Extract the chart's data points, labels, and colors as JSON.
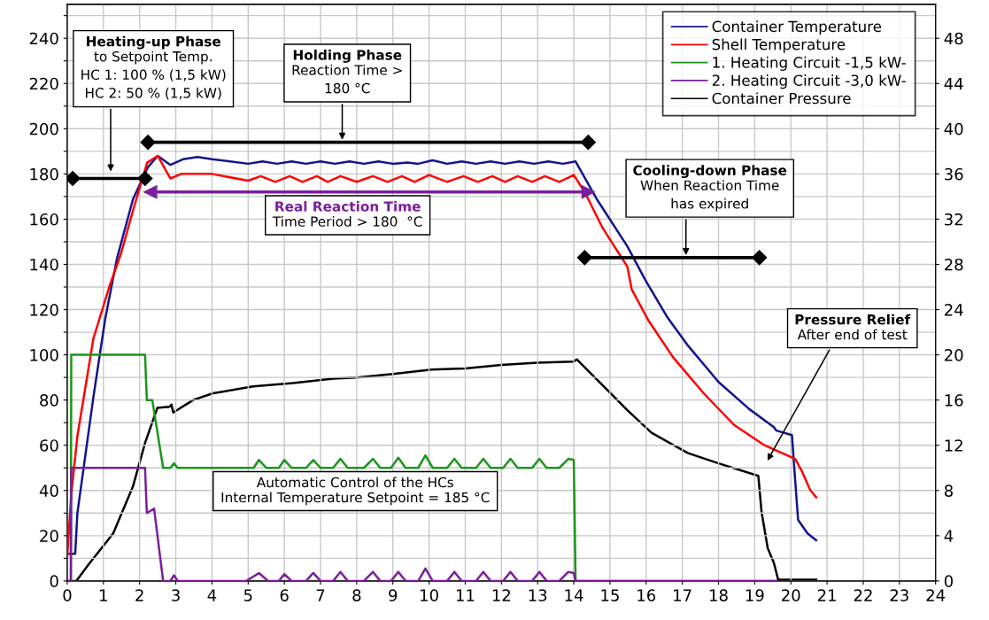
{
  "chart_data": {
    "type": "line",
    "xlim": [
      0,
      24
    ],
    "xticks": [
      0,
      1,
      2,
      3,
      4,
      5,
      6,
      7,
      8,
      9,
      10,
      11,
      12,
      13,
      14,
      15,
      16,
      17,
      18,
      19,
      20,
      21,
      22,
      23,
      24
    ],
    "ylim": [
      0,
      255
    ],
    "yticks": [
      0,
      {
        "value": 10,
        "label": null
      },
      20,
      {
        "value": 30,
        "label": null
      },
      40,
      {
        "value": 50,
        "label": null
      },
      60,
      {
        "value": 70,
        "label": null
      },
      80,
      {
        "value": 90,
        "label": null
      },
      100,
      {
        "value": 110,
        "label": null
      },
      120,
      {
        "value": 130,
        "label": null
      },
      140,
      {
        "value": 150,
        "label": null
      },
      160,
      {
        "value": 170,
        "label": null
      },
      180,
      {
        "value": 190,
        "label": null
      },
      200,
      {
        "value": 210,
        "label": null
      },
      220,
      {
        "value": 230,
        "label": null
      },
      240,
      {
        "value": 250,
        "label": null
      }
    ],
    "y2lim": [
      0,
      51
    ],
    "y2ticks": [
      0,
      4,
      8,
      12,
      16,
      20,
      24,
      28,
      32,
      36,
      40,
      44,
      48
    ],
    "grid": true,
    "legend": "top right",
    "marker": "none",
    "line_style": "solid",
    "series": [
      {
        "name": "Container Temperature",
        "color": "#14148c",
        "x": [
          0,
          0.22,
          0.28,
          0.72,
          1.05,
          1.38,
          1.82,
          2.23,
          2.5,
          2.85,
          3.2,
          3.6,
          4.0,
          4.5,
          5.0,
          5.4,
          5.8,
          6.2,
          6.6,
          7.0,
          7.4,
          7.8,
          8.2,
          8.6,
          9.0,
          9.4,
          9.7,
          10.1,
          10.5,
          10.9,
          11.3,
          11.7,
          12.1,
          12.5,
          12.9,
          13.3,
          13.7,
          14.05,
          14.63,
          15.48,
          15.98,
          16.57,
          17.16,
          18.0,
          18.85,
          19.53,
          19.6,
          20.03,
          20.08,
          20.2,
          20.46,
          20.7
        ],
        "values": [
          12,
          12,
          30,
          81,
          116,
          143,
          169,
          183,
          188,
          184,
          186.5,
          187.5,
          186.5,
          185.5,
          184.5,
          185.5,
          184.5,
          185.5,
          184.5,
          185.5,
          184.5,
          185.5,
          184.5,
          185.5,
          184.5,
          185,
          184.5,
          186,
          184.5,
          185.5,
          184.5,
          185.5,
          184.5,
          185.5,
          184.5,
          185.5,
          184.5,
          185.5,
          169,
          148,
          133,
          117,
          104,
          88,
          76,
          68,
          66.5,
          64.5,
          53,
          27,
          21,
          18
        ]
      },
      {
        "name": "Shell Temperature",
        "color": "#ff0000",
        "x": [
          0,
          0.11,
          0.28,
          0.72,
          1.16,
          1.49,
          1.82,
          2.21,
          2.5,
          2.71,
          2.85,
          3.15,
          4.0,
          5.0,
          5.35,
          5.75,
          6.15,
          6.5,
          6.9,
          7.2,
          7.55,
          8.0,
          8.45,
          8.85,
          9.25,
          9.6,
          10.0,
          10.5,
          10.95,
          11.35,
          11.75,
          12.1,
          12.45,
          12.85,
          13.2,
          13.6,
          14.0,
          14.3,
          14.8,
          15.4,
          15.48,
          15.6,
          16.07,
          16.74,
          17.59,
          18.43,
          19.27,
          20.12,
          20.29,
          20.54,
          20.7
        ],
        "values": [
          11,
          38,
          64,
          107,
          130,
          145,
          164,
          185,
          188,
          182,
          178,
          180,
          180,
          177,
          179,
          176.5,
          179,
          176.5,
          179,
          176.5,
          179,
          176.5,
          179,
          176.5,
          179,
          176.5,
          179.5,
          176.5,
          179,
          176.5,
          179,
          176.5,
          179,
          176.5,
          179,
          176.5,
          179.5,
          172,
          156,
          141,
          139,
          129,
          115,
          99,
          83,
          69,
          60,
          54,
          49,
          40,
          37
        ]
      },
      {
        "name": "1. Heating Circuit -1,5 kW-",
        "color": "#1a961a",
        "x": [
          0,
          0.1,
          0.11,
          2.15,
          2.2,
          2.35,
          2.5,
          2.65,
          2.85,
          2.95,
          3.05,
          4.9,
          5.15,
          5.3,
          5.5,
          5.85,
          6.0,
          6.2,
          6.6,
          6.8,
          7.0,
          7.35,
          7.55,
          7.75,
          8.2,
          8.45,
          8.65,
          8.95,
          9.15,
          9.35,
          9.7,
          9.9,
          10.1,
          10.5,
          10.7,
          10.9,
          11.3,
          11.5,
          11.7,
          12.05,
          12.25,
          12.45,
          12.85,
          13.05,
          13.25,
          13.6,
          13.85,
          14.0,
          14.05,
          19.6
        ],
        "values": [
          0,
          0,
          100,
          100,
          80,
          80,
          65,
          50,
          50,
          52,
          50,
          50,
          50,
          53.5,
          50,
          50,
          53.5,
          50,
          50,
          53.5,
          50,
          50,
          54,
          50,
          50,
          54,
          50,
          50,
          54.5,
          50,
          50,
          55.5,
          50,
          50,
          54,
          50,
          50,
          54,
          50,
          50,
          54,
          50,
          50,
          54,
          50,
          50,
          54,
          53.5,
          0,
          0
        ]
      },
      {
        "name": "2. Heating Circuit -3,0 kW-",
        "color": "#7a1e9c",
        "x": [
          0,
          0.1,
          0.11,
          2.15,
          2.2,
          2.4,
          2.65,
          2.85,
          2.95,
          3.05,
          4.95,
          5.3,
          5.55,
          5.85,
          6.0,
          6.2,
          6.6,
          6.8,
          7.0,
          7.35,
          7.55,
          7.75,
          8.2,
          8.45,
          8.65,
          8.95,
          9.15,
          9.35,
          9.7,
          9.9,
          10.1,
          10.5,
          10.7,
          10.9,
          11.3,
          11.5,
          11.7,
          12.05,
          12.25,
          12.45,
          12.85,
          13.05,
          13.25,
          13.6,
          13.85,
          14.0,
          14.05,
          19.6
        ],
        "values": [
          0,
          0,
          50,
          50,
          30,
          32,
          0,
          0,
          2.5,
          0,
          0,
          3.5,
          0,
          0,
          3,
          0,
          0,
          3.5,
          0,
          0,
          4,
          0,
          0,
          4,
          0,
          0,
          4,
          0,
          0,
          5.5,
          0,
          0,
          4,
          0,
          0,
          4,
          0,
          0,
          4,
          0,
          0,
          4,
          0,
          0,
          4,
          3.5,
          0,
          0
        ]
      },
      {
        "name": "Container Pressure",
        "color": "#000000",
        "axis": "y2",
        "x": [
          0,
          0.25,
          0.6,
          1.27,
          1.82,
          2.15,
          2.49,
          2.82,
          2.88,
          2.93,
          3.48,
          4.03,
          5.14,
          6.24,
          7.35,
          8.0,
          9.0,
          10.07,
          11.0,
          12.0,
          13.0,
          14.0,
          14.08,
          15.05,
          15.48,
          16.15,
          17.16,
          18.0,
          19.1,
          19.19,
          19.36,
          19.53,
          19.65,
          20.7
        ],
        "values": [
          0,
          0,
          1.5,
          4.2,
          8.4,
          12.2,
          15.3,
          15.4,
          15.6,
          14.9,
          16.0,
          16.6,
          17.2,
          17.5,
          17.9,
          18.0,
          18.3,
          18.7,
          18.8,
          19.1,
          19.3,
          19.4,
          19.6,
          16.5,
          15.1,
          13.1,
          11.3,
          10.4,
          9.3,
          6.1,
          2.9,
          1.6,
          0.1,
          0.1
        ]
      },
      {
        "color": "#000000",
        "marker": "diamond",
        "x": [
          0.15,
          2.15
        ],
        "values": [
          178,
          178
        ]
      },
      {
        "color": "#000000",
        "marker": "diamond",
        "x": [
          2.23,
          14.4
        ],
        "values": [
          194,
          194
        ]
      },
      {
        "color": "#7a1e9c",
        "marker": "triangle",
        "x": [
          2.3,
          14.4
        ],
        "values": [
          172,
          172
        ]
      },
      {
        "color": "#000000",
        "marker": "diamond",
        "x": [
          14.3,
          19.13
        ],
        "values": [
          143,
          143
        ]
      }
    ],
    "annotations": [
      {
        "text": "Heating-up Phase\nto Setpoint Temp.\nHC 1: 100 % (1,5 kW)\nHC 2: 50 % (1,5 kW)",
        "x": 1.2,
        "y": 180
      },
      {
        "text": "Holding Phase\nReaction Time >\n180 °C",
        "x": 7.6,
        "y": 194
      },
      "Real Reaction Time\nTime Period > 180  °C",
      "Automatic Control of the HCs\nInternal Temperature Setpoint = 185 °C",
      {
        "text": "Cooling-down Phase\nWhen Reaction Time\nhas expired",
        "x": 17.1,
        "y": 143
      },
      "Pressure Relief\nAfter end of test"
    ]
  }
}
